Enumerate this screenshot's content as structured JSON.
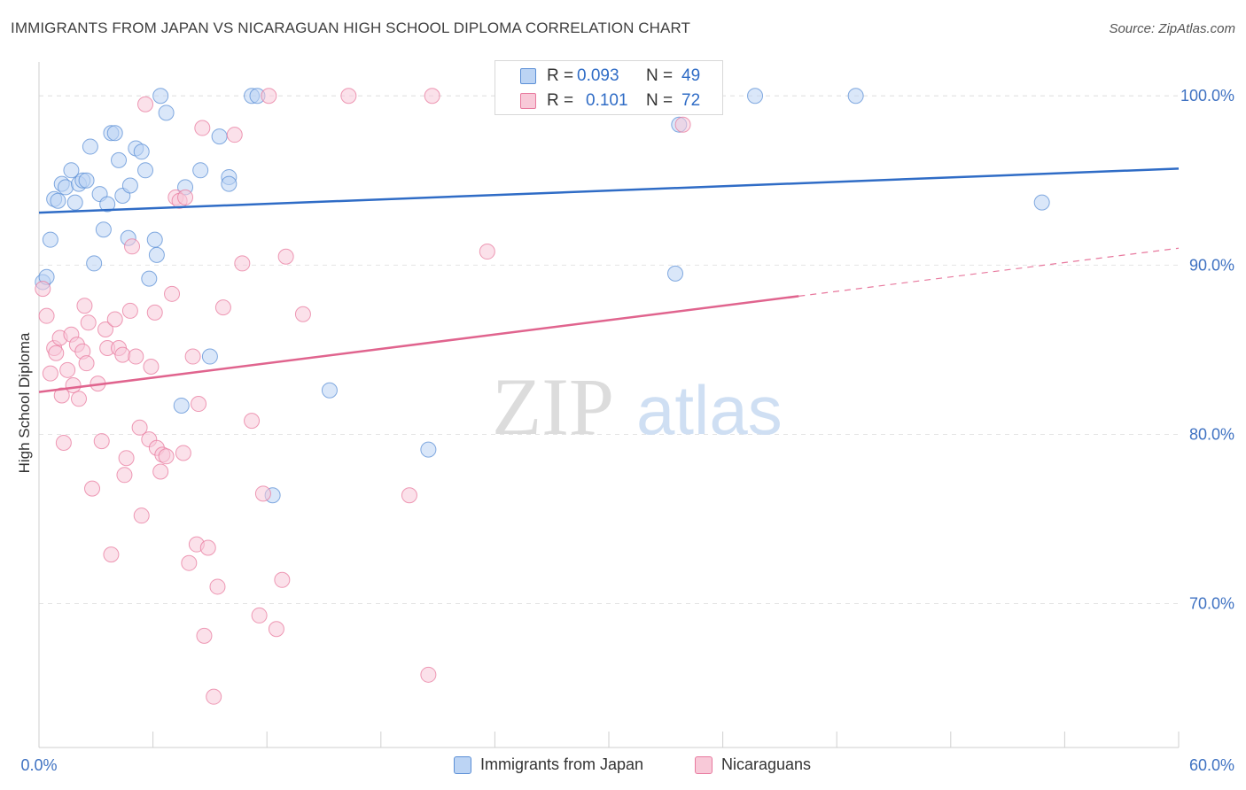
{
  "header": {
    "title": "IMMIGRANTS FROM JAPAN VS NICARAGUAN HIGH SCHOOL DIPLOMA CORRELATION CHART",
    "source": "Source: ZipAtlas.com"
  },
  "watermark": {
    "part1": "ZIP",
    "part2": "atlas"
  },
  "stats": [
    {
      "r_label": "R =",
      "r_value": "0.093",
      "n_label": "N =",
      "n_value": "49",
      "color": "#5b8fd6",
      "fill": "#bcd4f4"
    },
    {
      "r_label": "R =",
      "r_value": "0.101",
      "n_label": "N =",
      "n_value": "72",
      "color": "#e8799e",
      "fill": "#f8c9d8"
    }
  ],
  "legend": [
    {
      "label": "Immigrants from Japan",
      "color": "#5b8fd6",
      "fill": "#bcd4f4"
    },
    {
      "label": "Nicaraguans",
      "color": "#e8799e",
      "fill": "#f8c9d8"
    }
  ],
  "chart_data": {
    "type": "scatter",
    "title": "IMMIGRANTS FROM JAPAN VS NICARAGUAN HIGH SCHOOL DIPLOMA CORRELATION CHART",
    "xlabel": "",
    "ylabel": "High School Diploma",
    "xlim": [
      0,
      60
    ],
    "ylim": [
      61.5,
      102
    ],
    "x_tick_labels": [
      "0.0%",
      "60.0%"
    ],
    "y_ticks": [
      70,
      80,
      90,
      100
    ],
    "y_tick_labels": [
      "70.0%",
      "80.0%",
      "90.0%",
      "100.0%"
    ],
    "grid": true,
    "legend_position": "bottom-center",
    "series": [
      {
        "name": "Immigrants from Japan",
        "color": "#5b8fd6",
        "fill": "#bcd4f4",
        "trend": {
          "x": [
            0,
            60
          ],
          "y": [
            93.1,
            95.7
          ],
          "dashed_from": null
        },
        "points": [
          [
            0.2,
            89.0
          ],
          [
            0.4,
            89.3
          ],
          [
            0.6,
            91.5
          ],
          [
            0.8,
            93.9
          ],
          [
            1.0,
            93.8
          ],
          [
            1.2,
            94.8
          ],
          [
            1.4,
            94.6
          ],
          [
            1.7,
            95.6
          ],
          [
            1.9,
            93.7
          ],
          [
            2.1,
            94.8
          ],
          [
            2.3,
            95.0
          ],
          [
            2.5,
            95.0
          ],
          [
            2.7,
            97.0
          ],
          [
            2.9,
            90.1
          ],
          [
            3.2,
            94.2
          ],
          [
            3.4,
            92.1
          ],
          [
            3.6,
            93.6
          ],
          [
            3.8,
            97.8
          ],
          [
            4.0,
            97.8
          ],
          [
            4.2,
            96.2
          ],
          [
            4.4,
            94.1
          ],
          [
            4.7,
            91.6
          ],
          [
            4.8,
            94.7
          ],
          [
            5.1,
            96.9
          ],
          [
            5.4,
            96.7
          ],
          [
            5.6,
            95.6
          ],
          [
            5.8,
            89.2
          ],
          [
            6.1,
            91.5
          ],
          [
            6.2,
            90.6
          ],
          [
            6.4,
            100.0
          ],
          [
            6.7,
            99.0
          ],
          [
            7.5,
            81.7
          ],
          [
            7.7,
            94.6
          ],
          [
            8.5,
            95.6
          ],
          [
            9.0,
            84.6
          ],
          [
            9.5,
            97.6
          ],
          [
            10.0,
            95.2
          ],
          [
            10.0,
            94.8
          ],
          [
            11.2,
            100.0
          ],
          [
            11.5,
            100.0
          ],
          [
            12.3,
            76.4
          ],
          [
            15.3,
            82.6
          ],
          [
            20.5,
            79.1
          ],
          [
            28.5,
            100.0
          ],
          [
            33.5,
            89.5
          ],
          [
            33.7,
            98.3
          ],
          [
            37.7,
            100.0
          ],
          [
            43.0,
            100.0
          ],
          [
            52.8,
            93.7
          ]
        ]
      },
      {
        "name": "Nicaraguans",
        "color": "#e8799e",
        "fill": "#f8c9d8",
        "trend": {
          "x": [
            0,
            60
          ],
          "y": [
            82.5,
            91.0
          ],
          "dashed_from": 40
        },
        "points": [
          [
            0.2,
            88.6
          ],
          [
            0.4,
            87.0
          ],
          [
            0.6,
            83.6
          ],
          [
            0.8,
            85.1
          ],
          [
            0.9,
            84.8
          ],
          [
            1.1,
            85.7
          ],
          [
            1.2,
            82.3
          ],
          [
            1.3,
            79.5
          ],
          [
            1.5,
            83.8
          ],
          [
            1.7,
            85.9
          ],
          [
            1.8,
            82.9
          ],
          [
            2.0,
            85.3
          ],
          [
            2.1,
            82.1
          ],
          [
            2.3,
            84.9
          ],
          [
            2.4,
            87.6
          ],
          [
            2.5,
            84.2
          ],
          [
            2.6,
            86.6
          ],
          [
            2.8,
            76.8
          ],
          [
            3.1,
            83.0
          ],
          [
            3.3,
            79.6
          ],
          [
            3.5,
            86.2
          ],
          [
            3.6,
            85.1
          ],
          [
            3.8,
            72.9
          ],
          [
            4.0,
            86.8
          ],
          [
            4.2,
            85.1
          ],
          [
            4.4,
            84.7
          ],
          [
            4.5,
            77.6
          ],
          [
            4.6,
            78.6
          ],
          [
            4.8,
            87.3
          ],
          [
            4.9,
            91.1
          ],
          [
            5.1,
            84.6
          ],
          [
            5.3,
            80.4
          ],
          [
            5.4,
            75.2
          ],
          [
            5.6,
            99.5
          ],
          [
            5.8,
            79.7
          ],
          [
            5.9,
            84.0
          ],
          [
            6.1,
            87.2
          ],
          [
            6.2,
            79.2
          ],
          [
            6.4,
            77.8
          ],
          [
            6.5,
            78.8
          ],
          [
            6.7,
            78.7
          ],
          [
            7.0,
            88.3
          ],
          [
            7.2,
            94.0
          ],
          [
            7.4,
            93.8
          ],
          [
            7.6,
            78.9
          ],
          [
            7.7,
            94.0
          ],
          [
            7.9,
            72.4
          ],
          [
            8.1,
            84.6
          ],
          [
            8.3,
            73.5
          ],
          [
            8.4,
            81.8
          ],
          [
            8.6,
            98.1
          ],
          [
            8.7,
            68.1
          ],
          [
            8.9,
            73.3
          ],
          [
            9.2,
            64.5
          ],
          [
            9.4,
            71.0
          ],
          [
            9.7,
            87.5
          ],
          [
            10.3,
            97.7
          ],
          [
            10.7,
            90.1
          ],
          [
            11.2,
            80.8
          ],
          [
            11.6,
            69.3
          ],
          [
            11.8,
            76.5
          ],
          [
            12.1,
            100.0
          ],
          [
            12.5,
            68.5
          ],
          [
            12.8,
            71.4
          ],
          [
            13.0,
            90.5
          ],
          [
            13.9,
            87.1
          ],
          [
            16.3,
            100.0
          ],
          [
            19.5,
            76.4
          ],
          [
            20.5,
            65.8
          ],
          [
            20.7,
            100.0
          ],
          [
            23.6,
            90.8
          ],
          [
            33.9,
            98.3
          ]
        ]
      }
    ]
  }
}
